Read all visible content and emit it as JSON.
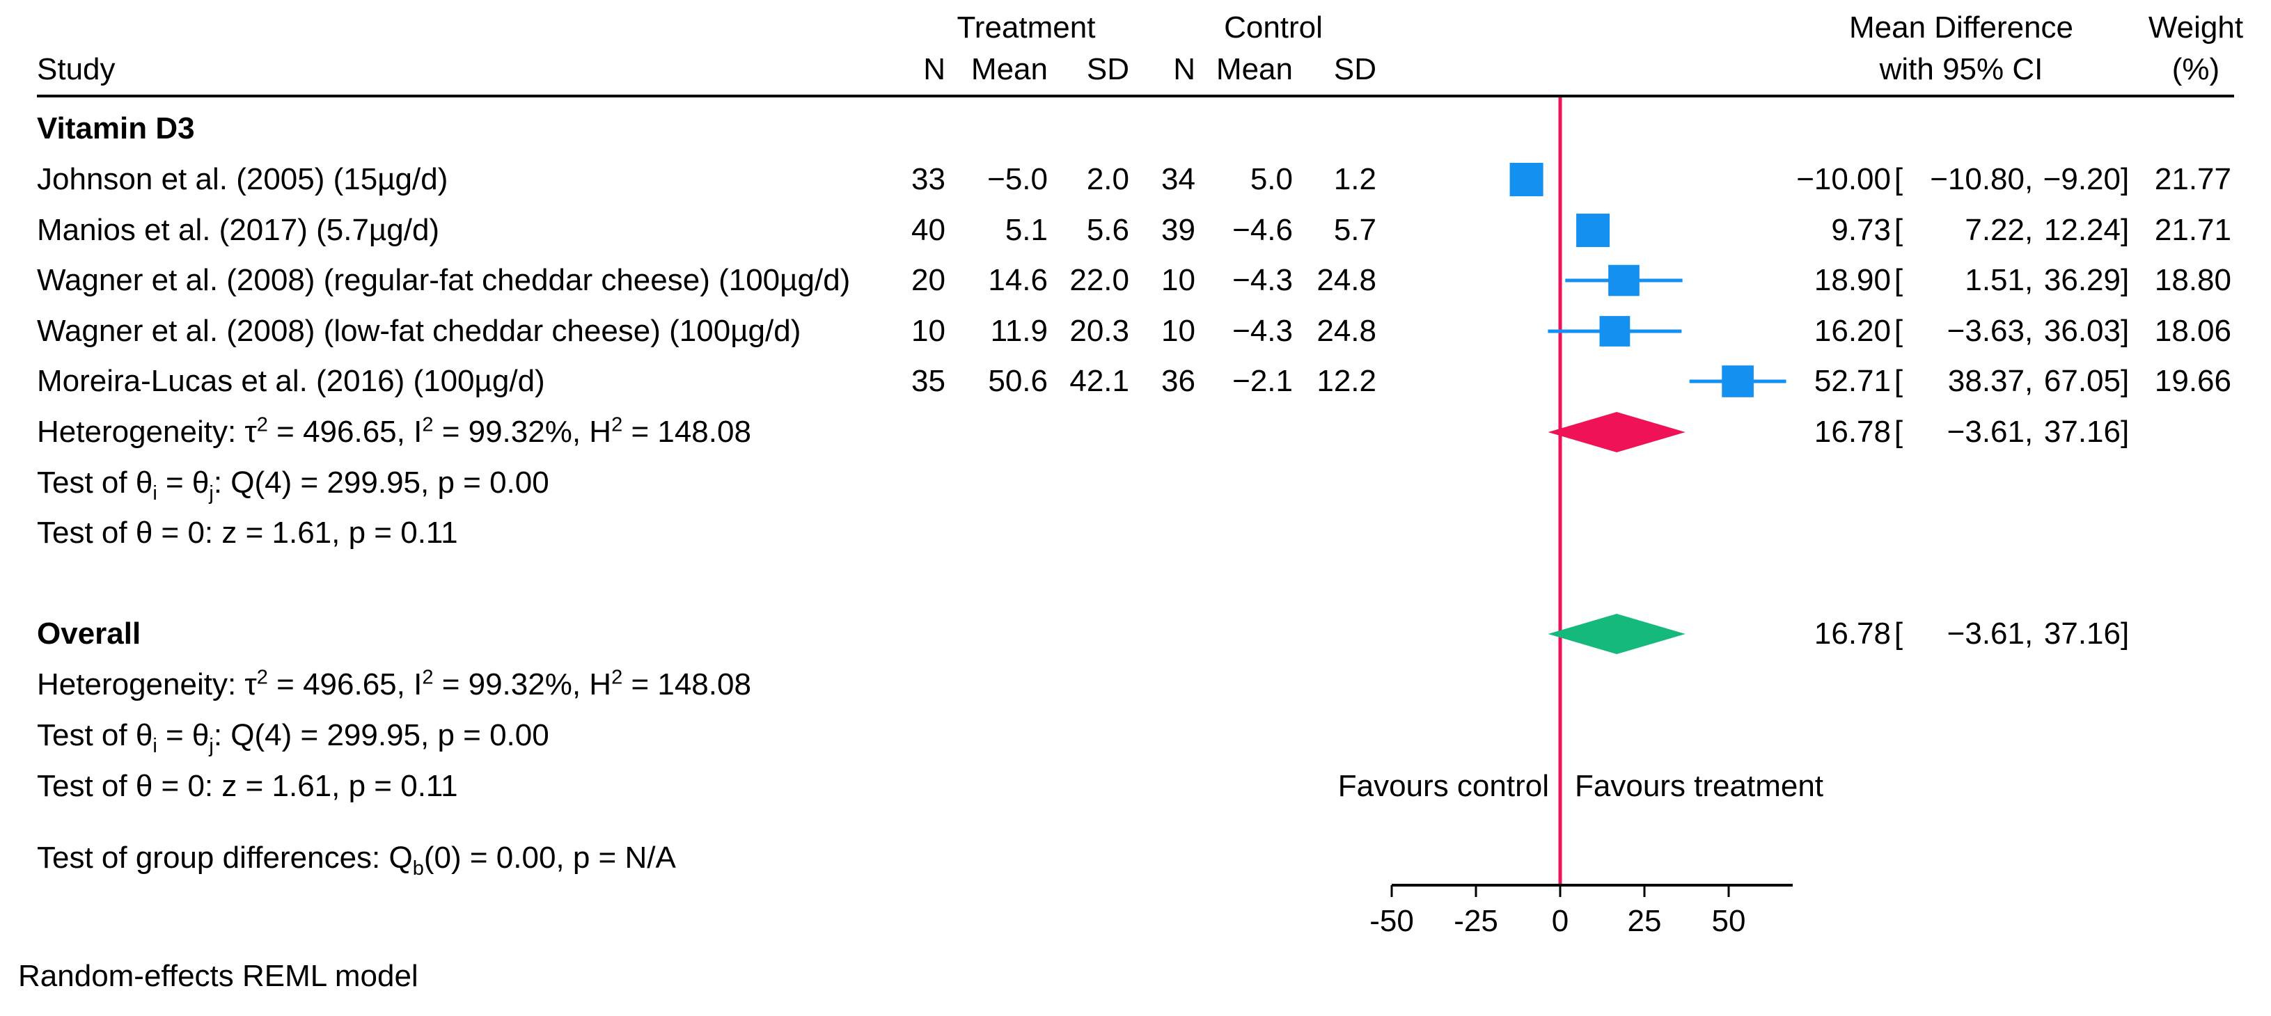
{
  "header": {
    "study": "Study",
    "treatment_group": "Treatment",
    "control_group": "Control",
    "col_n": "N",
    "col_mean": "Mean",
    "col_sd": "SD",
    "effect_line1": "Mean Difference",
    "effect_line2": "with 95% CI",
    "weight_line1": "Weight",
    "weight_line2": "(%)"
  },
  "punct": {
    "open": "[",
    "sep": ",",
    "close": "]"
  },
  "table": {
    "group_label": "Vitamin D3",
    "studies": [
      {
        "name": "Johnson et al. (2005) (15µg/d)",
        "t_n": "33",
        "t_mean": "−5.0",
        "t_sd": "2.0",
        "c_n": "34",
        "c_mean": "5.0",
        "c_sd": "1.2",
        "md": "−10.00",
        "lo": "−10.80",
        "hi": "−9.20",
        "weight": "21.77"
      },
      {
        "name": "Manios et al. (2017) (5.7µg/d)",
        "t_n": "40",
        "t_mean": "5.1",
        "t_sd": "5.6",
        "c_n": "39",
        "c_mean": "−4.6",
        "c_sd": "5.7",
        "md": "9.73",
        "lo": "7.22",
        "hi": "12.24",
        "weight": "21.71"
      },
      {
        "name": "Wagner et al. (2008) (regular-fat cheddar cheese) (100µg/d)",
        "t_n": "20",
        "t_mean": "14.6",
        "t_sd": "22.0",
        "c_n": "10",
        "c_mean": "−4.3",
        "c_sd": "24.8",
        "md": "18.90",
        "lo": "1.51",
        "hi": "36.29",
        "weight": "18.80"
      },
      {
        "name": "Wagner et al. (2008) (low-fat cheddar cheese) (100µg/d)",
        "t_n": "10",
        "t_mean": "11.9",
        "t_sd": "20.3",
        "c_n": "10",
        "c_mean": "−4.3",
        "c_sd": "24.8",
        "md": "16.20",
        "lo": "−3.63",
        "hi": "36.03",
        "weight": "18.06"
      },
      {
        "name": "Moreira-Lucas et al. (2016) (100µg/d)",
        "t_n": "35",
        "t_mean": "50.6",
        "t_sd": "42.1",
        "c_n": "36",
        "c_mean": "−2.1",
        "c_sd": "12.2",
        "md": "52.71",
        "lo": "38.37",
        "hi": "67.05",
        "weight": "19.66"
      }
    ],
    "subgroup": {
      "heterogeneity": "Heterogeneity: τ^2 = 496.65, I^2 = 99.32%, H^2 = 148.08",
      "test_q": "Test of θ_i = θ_j: Q(4) = 299.95, p = 0.00",
      "test_z": "Test of θ = 0: z = 1.61, p = 0.11",
      "pooled": {
        "md": "16.78",
        "lo": "−3.61",
        "hi": "37.16"
      }
    },
    "overall_label": "Overall",
    "overall": {
      "heterogeneity": "Heterogeneity: τ^2 = 496.65, I^2 = 99.32%, H^2 = 148.08",
      "test_q": "Test of θ_i = θ_j: Q(4) = 299.95, p = 0.00",
      "test_z": "Test of θ = 0: z = 1.61, p = 0.11",
      "pooled": {
        "md": "16.78",
        "lo": "−3.61",
        "hi": "37.16"
      }
    },
    "group_diff": "Test of group differences: Q_b(0) = 0.00, p = N/A",
    "note": "Random-effects REML model"
  },
  "favours_left": "Favours control",
  "favours_right": "Favours treatment",
  "colors": {
    "marker_blue": "#1490f0",
    "zero_line_crimson": "#ef1256",
    "subgroup_diamond_crimson": "#ef1256",
    "overall_diamond_green": "#16b97c",
    "axis_black": "#000000"
  },
  "chart_data": {
    "type": "scatter",
    "subtype": "forest-plot",
    "title": "",
    "xlabel": "",
    "x_ticks": [
      -50,
      -25,
      0,
      25,
      50
    ],
    "x_tick_labels": [
      "-50",
      "-25",
      "0",
      "25",
      "50"
    ],
    "xlim": [
      -50,
      69
    ],
    "zero_line": 0,
    "legend_position": "none",
    "grid": false,
    "groups": [
      {
        "name": "Vitamin D3",
        "studies": [
          {
            "name": "Johnson et al. (2005) (15µg/d)",
            "treatment": {
              "n": 33,
              "mean": -5.0,
              "sd": 2.0
            },
            "control": {
              "n": 34,
              "mean": 5.0,
              "sd": 1.2
            },
            "md": -10.0,
            "ci": [
              -10.8,
              -9.2
            ],
            "weight_pct": 21.77
          },
          {
            "name": "Manios et al. (2017) (5.7µg/d)",
            "treatment": {
              "n": 40,
              "mean": 5.1,
              "sd": 5.6
            },
            "control": {
              "n": 39,
              "mean": -4.6,
              "sd": 5.7
            },
            "md": 9.73,
            "ci": [
              7.22,
              12.24
            ],
            "weight_pct": 21.71
          },
          {
            "name": "Wagner et al. (2008) (regular-fat cheddar cheese) (100µg/d)",
            "treatment": {
              "n": 20,
              "mean": 14.6,
              "sd": 22.0
            },
            "control": {
              "n": 10,
              "mean": -4.3,
              "sd": 24.8
            },
            "md": 18.9,
            "ci": [
              1.51,
              36.29
            ],
            "weight_pct": 18.8
          },
          {
            "name": "Wagner et al. (2008) (low-fat cheddar cheese) (100µg/d)",
            "treatment": {
              "n": 10,
              "mean": 11.9,
              "sd": 20.3
            },
            "control": {
              "n": 10,
              "mean": -4.3,
              "sd": 24.8
            },
            "md": 16.2,
            "ci": [
              -3.63,
              36.03
            ],
            "weight_pct": 18.06
          },
          {
            "name": "Moreira-Lucas et al. (2016) (100µg/d)",
            "treatment": {
              "n": 35,
              "mean": 50.6,
              "sd": 42.1
            },
            "control": {
              "n": 36,
              "mean": -2.1,
              "sd": 12.2
            },
            "md": 52.71,
            "ci": [
              38.37,
              67.05
            ],
            "weight_pct": 19.66
          }
        ],
        "pooled": {
          "md": 16.78,
          "ci": [
            -3.61,
            37.16
          ]
        },
        "heterogeneity": {
          "tau2": 496.65,
          "I2_pct": 99.32,
          "H2": 148.08,
          "Q_df": 4,
          "Q": 299.95,
          "Q_p": 0.0,
          "z": 1.61,
          "z_p": 0.11
        }
      }
    ],
    "overall_pooled": {
      "md": 16.78,
      "ci": [
        -3.61,
        37.16
      ]
    },
    "overall_heterogeneity": {
      "tau2": 496.65,
      "I2_pct": 99.32,
      "H2": 148.08,
      "Q_df": 4,
      "Q": 299.95,
      "Q_p": 0.0,
      "z": 1.61,
      "z_p": 0.11
    },
    "group_difference_test": {
      "Qb_df": 0,
      "Qb": 0.0,
      "p": "N/A"
    },
    "model": "Random-effects REML model"
  }
}
